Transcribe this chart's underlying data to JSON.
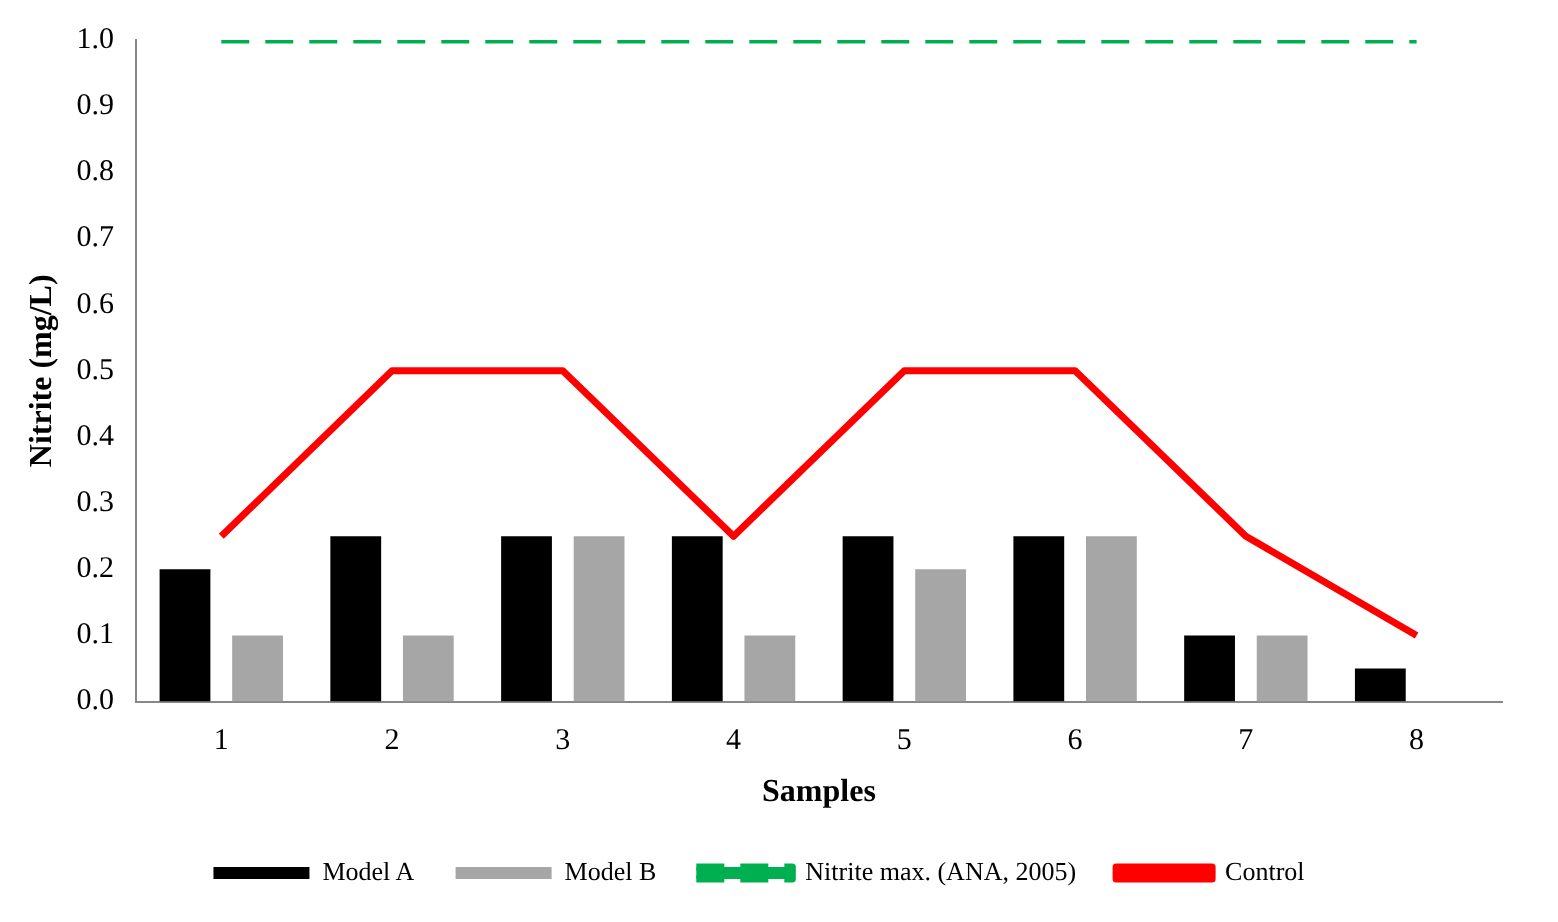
{
  "chart_data": {
    "type": "bar",
    "xlabel": "Samples",
    "ylabel": "Nitrite (mg/L)",
    "categories": [
      "1",
      "2",
      "3",
      "4",
      "5",
      "6",
      "7",
      "8"
    ],
    "series": [
      {
        "name": "Model A",
        "color": "#000000",
        "values": [
          0.2,
          0.25,
          0.25,
          0.25,
          0.25,
          0.25,
          0.1,
          0.05
        ]
      },
      {
        "name": "Model B",
        "color": "#a6a6a6",
        "values": [
          0.1,
          0.1,
          0.25,
          0.1,
          0.2,
          0.25,
          0.1,
          null
        ]
      },
      {
        "name": "Nitrite max. (ANA, 2005)",
        "type": "line",
        "line_style": "dashed",
        "color": "#00b050",
        "values": [
          1,
          1,
          1,
          1,
          1,
          1,
          1,
          1
        ]
      },
      {
        "name": "Control",
        "type": "line",
        "line_style": "solid",
        "color": "#ff0000",
        "values": [
          0.25,
          0.5,
          0.5,
          0.25,
          0.5,
          0.5,
          0.25,
          0.1
        ]
      }
    ],
    "ylim": [
      0,
      1
    ],
    "yticks": [
      {
        "value": 0,
        "label": "0.0"
      },
      0.1,
      0.2,
      0.3,
      0.4,
      0.5,
      0.6,
      0.7,
      0.8,
      0.9,
      {
        "value": 1,
        "label": "1.0"
      }
    ],
    "grid": false,
    "legend": "bottom",
    "marker": "none"
  }
}
